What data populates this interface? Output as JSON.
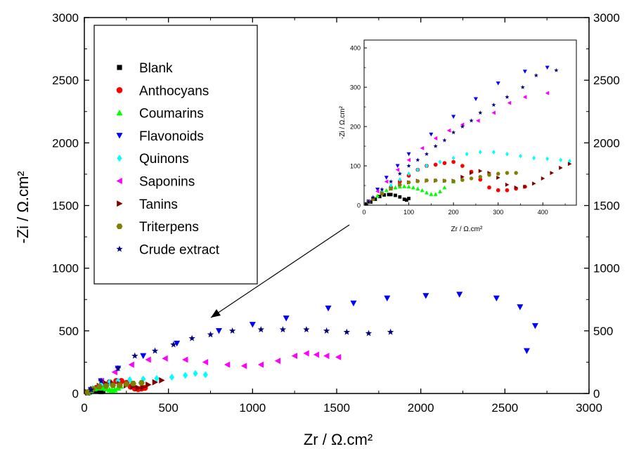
{
  "chart_data": [
    {
      "type": "scatter",
      "title": "",
      "xlabel": "Zr / Ω.cm²",
      "ylabel": "-Zi / Ω.cm²",
      "xlim": [
        0,
        3000
      ],
      "ylim": [
        0,
        3000
      ],
      "xticks": [
        "0",
        "500",
        "1000",
        "1500",
        "2000",
        "2500",
        "3000"
      ],
      "yticks": [
        "0",
        "500",
        "1000",
        "1500",
        "2000",
        "2500",
        "3000"
      ],
      "y2ticks": [
        "0",
        "500",
        "1000",
        "1500",
        "2000",
        "2500",
        "3000"
      ],
      "grid": false,
      "legend_position": "top-left",
      "annotation": "arrow from inset to low-impedance region",
      "series": [
        {
          "name": "Blank",
          "marker": "square",
          "color": "#000000",
          "x": [
            20,
            30,
            45,
            60,
            75,
            90,
            100,
            110
          ],
          "y": [
            5,
            12,
            20,
            25,
            24,
            18,
            15,
            20
          ]
        },
        {
          "name": "Anthocyans",
          "marker": "circle",
          "color": "#ff0000",
          "x": [
            20,
            40,
            70,
            110,
            150,
            190,
            220,
            250,
            275,
            300,
            320,
            340,
            360
          ],
          "y": [
            10,
            25,
            45,
            70,
            90,
            100,
            100,
            85,
            55,
            40,
            35,
            40,
            45
          ]
        },
        {
          "name": "Coumarins",
          "marker": "triangle-up",
          "color": "#00ff00",
          "x": [
            20,
            40,
            60,
            80,
            110,
            130,
            150,
            165,
            180,
            200,
            215
          ],
          "y": [
            10,
            25,
            40,
            45,
            45,
            40,
            30,
            25,
            30,
            45,
            60
          ]
        },
        {
          "name": "Flavonoids",
          "marker": "triangle-down",
          "color": "#0000ff",
          "x": [
            40,
            100,
            200,
            350,
            550,
            800,
            1000,
            1200,
            1450,
            1600,
            1800,
            2030,
            2230,
            2450,
            2590,
            2680,
            2630
          ],
          "y": [
            30,
            100,
            200,
            300,
            400,
            500,
            550,
            600,
            680,
            720,
            760,
            780,
            790,
            760,
            690,
            540,
            340
          ]
        },
        {
          "name": "Quinons",
          "marker": "diamond",
          "color": "#00ffff",
          "x": [
            20,
            50,
            100,
            150,
            200,
            270,
            350,
            430,
            520,
            600,
            660,
            720
          ],
          "y": [
            10,
            40,
            70,
            90,
            100,
            110,
            115,
            120,
            130,
            145,
            160,
            150
          ]
        },
        {
          "name": "Saponins",
          "marker": "triangle-left",
          "color": "#ff00ff",
          "x": [
            40,
            100,
            180,
            280,
            380,
            480,
            600,
            720,
            850,
            950,
            1050,
            1150,
            1250,
            1320,
            1380,
            1440,
            1510
          ],
          "y": [
            30,
            100,
            170,
            230,
            270,
            280,
            270,
            250,
            230,
            220,
            230,
            260,
            300,
            320,
            310,
            300,
            290
          ]
        },
        {
          "name": "Tanins",
          "marker": "triangle-right",
          "color": "#800000",
          "x": [
            20,
            50,
            90,
            130,
            170,
            210,
            250,
            290,
            320,
            350,
            380,
            420,
            460
          ],
          "y": [
            10,
            35,
            60,
            80,
            80,
            75,
            65,
            55,
            45,
            50,
            70,
            90,
            105
          ]
        },
        {
          "name": "Triterpens",
          "marker": "hexagon",
          "color": "#808000",
          "x": [
            20,
            50,
            90,
            130,
            170,
            210,
            250,
            290,
            340
          ],
          "y": [
            10,
            35,
            55,
            60,
            65,
            65,
            75,
            80,
            85
          ]
        },
        {
          "name": "Crude extract",
          "marker": "star",
          "color": "#000080",
          "x": [
            40,
            100,
            200,
            300,
            420,
            530,
            640,
            750,
            880,
            1050,
            1180,
            1320,
            1440,
            1560,
            1690,
            1820
          ],
          "y": [
            30,
            100,
            200,
            300,
            340,
            390,
            440,
            470,
            500,
            510,
            510,
            510,
            500,
            490,
            480,
            490
          ]
        }
      ]
    },
    {
      "type": "scatter",
      "title": "",
      "xlabel": "Zr / Ω.cm²",
      "ylabel": "-Zi / Ω.cm²",
      "xlim": [
        0,
        475
      ],
      "ylim": [
        0,
        420
      ],
      "xticks": [
        "0",
        "100",
        "200",
        "300",
        "400"
      ],
      "yticks": [
        "0",
        "100",
        "200",
        "300",
        "400"
      ],
      "series": [
        {
          "name": "Blank",
          "x": [
            5,
            15,
            25,
            35,
            45,
            55,
            60,
            70,
            80,
            90,
            95,
            100
          ],
          "y": [
            3,
            8,
            15,
            22,
            26,
            27,
            27,
            25,
            21,
            15,
            13,
            17
          ]
        },
        {
          "name": "Anthocyans",
          "x": [
            10,
            20,
            40,
            60,
            80,
            100,
            120,
            140,
            160,
            180,
            200,
            220,
            240,
            260,
            280,
            300,
            320,
            340,
            360
          ],
          "y": [
            8,
            16,
            30,
            45,
            60,
            75,
            90,
            100,
            103,
            107,
            110,
            100,
            85,
            65,
            45,
            38,
            38,
            42,
            47
          ]
        },
        {
          "name": "Coumarins",
          "x": [
            10,
            20,
            30,
            40,
            50,
            60,
            70,
            80,
            90,
            100,
            110,
            120,
            130,
            140,
            150,
            160,
            170,
            180,
            200
          ],
          "y": [
            8,
            16,
            24,
            32,
            38,
            42,
            45,
            47,
            48,
            47,
            45,
            42,
            38,
            32,
            28,
            28,
            35,
            45,
            60
          ]
        },
        {
          "name": "Flavonoids",
          "x": [
            10,
            30,
            50,
            75,
            100,
            150,
            200,
            250,
            300,
            360,
            410
          ],
          "y": [
            10,
            40,
            70,
            100,
            130,
            180,
            225,
            270,
            310,
            340,
            350
          ]
        },
        {
          "name": "Quinons",
          "x": [
            10,
            20,
            40,
            60,
            80,
            100,
            120,
            140,
            170,
            200,
            230,
            260,
            290,
            320,
            350,
            380,
            410,
            440,
            460
          ],
          "y": [
            8,
            18,
            35,
            50,
            65,
            80,
            90,
            100,
            110,
            120,
            130,
            135,
            135,
            130,
            125,
            120,
            118,
            115,
            112
          ]
        },
        {
          "name": "Saponins",
          "x": [
            10,
            30,
            50,
            75,
            100,
            130,
            160,
            190,
            220,
            255,
            290,
            325,
            360,
            410
          ],
          "y": [
            10,
            35,
            60,
            90,
            115,
            145,
            170,
            190,
            205,
            215,
            235,
            260,
            275,
            285
          ]
        },
        {
          "name": "Tanins",
          "x": [
            10,
            20,
            40,
            60,
            80,
            100,
            120,
            140,
            160,
            180,
            200,
            220,
            240,
            260,
            280,
            300,
            320,
            340,
            360,
            380,
            400,
            420,
            440,
            460
          ],
          "y": [
            8,
            16,
            30,
            42,
            52,
            58,
            62,
            62,
            62,
            62,
            62,
            72,
            82,
            87,
            82,
            70,
            52,
            45,
            47,
            55,
            68,
            82,
            95,
            105
          ]
        },
        {
          "name": "Triterpens",
          "x": [
            10,
            20,
            40,
            60,
            80,
            100,
            120,
            140,
            160,
            180,
            200,
            220,
            240,
            260,
            280,
            300,
            320,
            340
          ],
          "y": [
            8,
            16,
            30,
            42,
            52,
            58,
            61,
            63,
            63,
            62,
            61,
            64,
            68,
            72,
            77,
            80,
            82,
            82
          ]
        },
        {
          "name": "Crude extract",
          "x": [
            10,
            20,
            40,
            60,
            80,
            100,
            120,
            140,
            160,
            180,
            200,
            220,
            240,
            260,
            290,
            320,
            355,
            385,
            430
          ],
          "y": [
            8,
            20,
            40,
            60,
            80,
            100,
            115,
            130,
            150,
            165,
            185,
            200,
            215,
            235,
            255,
            275,
            300,
            330,
            343
          ]
        }
      ]
    }
  ]
}
